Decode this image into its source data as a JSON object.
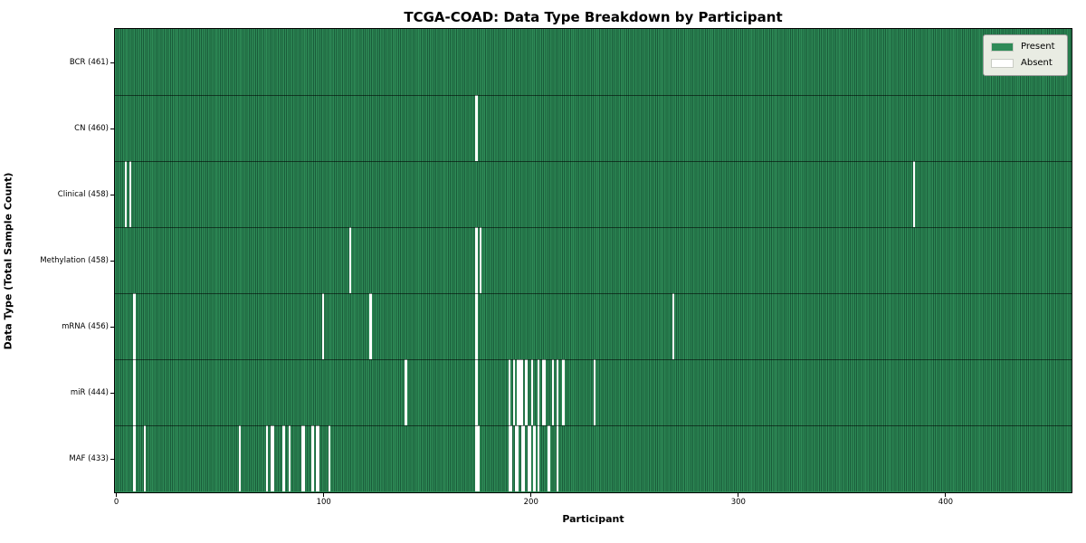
{
  "chart_data": {
    "type": "heatmap",
    "title": "TCGA-COAD: Data Type Breakdown by Participant",
    "xlabel": "Participant",
    "ylabel": "Data Type (Total Sample Count)",
    "n_participants": 461,
    "x_ticks": [
      0,
      100,
      200,
      300,
      400
    ],
    "grid": false,
    "legend": {
      "position": "upper right",
      "entries": [
        {
          "label": "Present",
          "color": "#2e8b57"
        },
        {
          "label": "Absent",
          "color": "#ffffff"
        }
      ]
    },
    "colors": {
      "present": "#2e8b57",
      "present_edge": "#1a5c3a",
      "absent": "#ffffff",
      "row_separator": "rgba(0,0,0,0.55)"
    },
    "rows": [
      {
        "name": "BCR",
        "total": 461,
        "label": "BCR (461)",
        "absent_participants": []
      },
      {
        "name": "CN",
        "total": 460,
        "label": "CN (460)",
        "absent_participants": [
          174
        ]
      },
      {
        "name": "Clinical",
        "total": 458,
        "label": "Clinical (458)",
        "absent_participants": [
          5,
          7,
          385
        ]
      },
      {
        "name": "Methylation",
        "total": 458,
        "label": "Methylation (458)",
        "absent_participants": [
          113,
          174,
          176
        ]
      },
      {
        "name": "mRNA",
        "total": 456,
        "label": "mRNA (456)",
        "absent_participants": [
          9,
          100,
          123,
          174,
          269
        ]
      },
      {
        "name": "miR",
        "total": 444,
        "label": "miR (444)",
        "absent_participants": [
          9,
          140,
          174,
          190,
          192,
          194,
          195,
          196,
          198,
          201,
          204,
          206,
          207,
          211,
          213,
          216,
          231
        ]
      },
      {
        "name": "MAF",
        "total": 433,
        "label": "MAF (433)",
        "absent_participants": [
          9,
          14,
          60,
          73,
          75,
          76,
          81,
          84,
          90,
          91,
          95,
          97,
          98,
          103,
          174,
          175,
          190,
          191,
          193,
          194,
          196,
          197,
          199,
          200,
          202,
          204,
          209,
          213
        ]
      }
    ]
  }
}
